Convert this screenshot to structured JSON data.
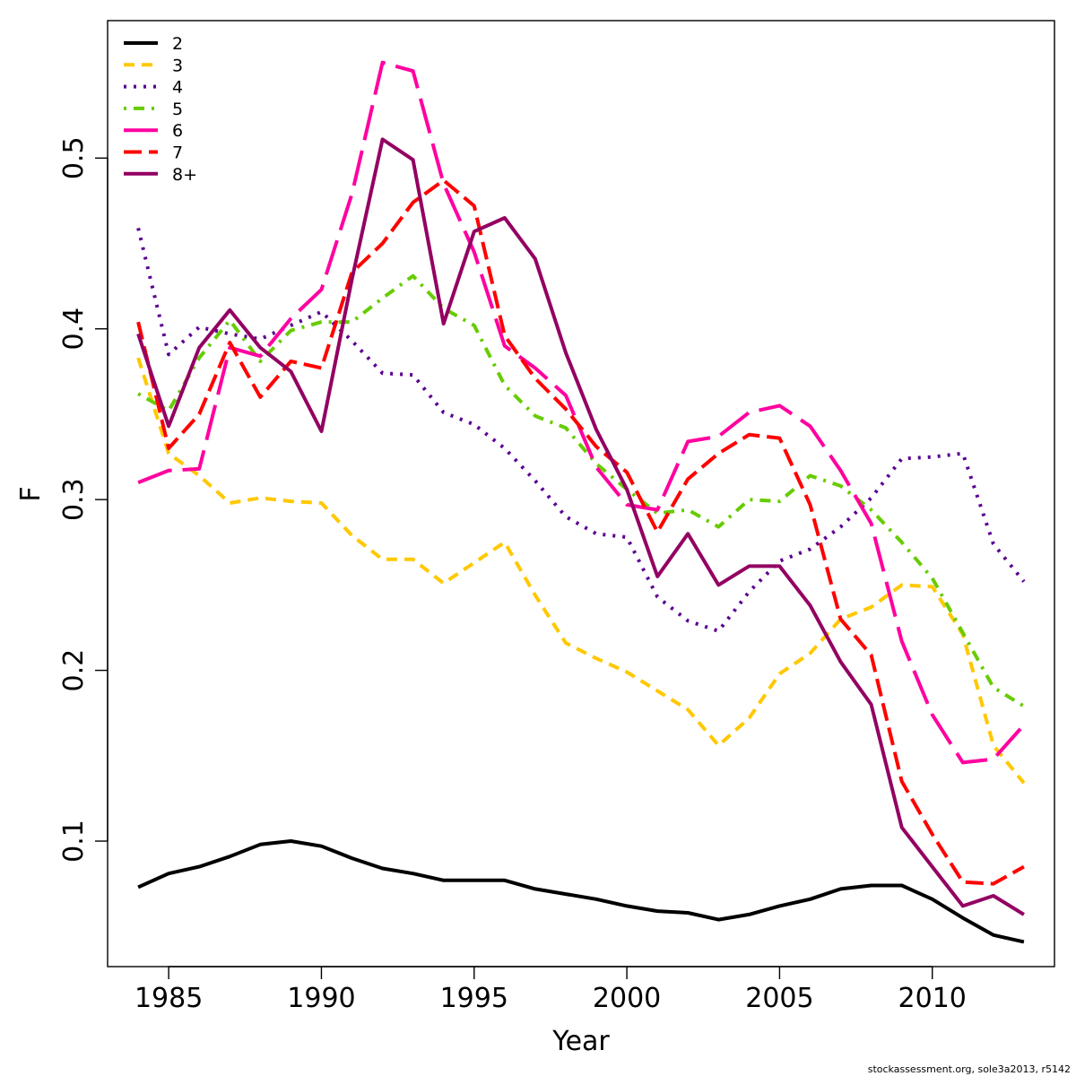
{
  "chart_data": {
    "type": "line",
    "xlabel": "Year",
    "ylabel": "F",
    "xlim": [
      1983.0,
      2014.0
    ],
    "ylim": [
      0.0265,
      0.5805
    ],
    "xticks": [
      1985,
      1990,
      1995,
      2000,
      2005,
      2010
    ],
    "yticks": [
      0.1,
      0.2,
      0.3,
      0.4,
      0.5
    ],
    "ytick_labels": [
      "0.1",
      "0.2",
      "0.3",
      "0.4",
      "0.5"
    ],
    "grid": false,
    "legend_position": "top-left",
    "credit": "stockassessment.org, sole3a2013, r5142",
    "x": [
      1984,
      1985,
      1986,
      1987,
      1988,
      1989,
      1990,
      1991,
      1992,
      1993,
      1994,
      1995,
      1996,
      1997,
      1998,
      1999,
      2000,
      2001,
      2002,
      2003,
      2004,
      2005,
      2006,
      2007,
      2008,
      2009,
      2010,
      2011,
      2012,
      2013
    ],
    "series": [
      {
        "name": "2",
        "color": "#000000",
        "dash": "",
        "values": [
          0.073,
          0.081,
          0.085,
          0.091,
          0.098,
          0.1,
          0.097,
          0.09,
          0.084,
          0.081,
          0.077,
          0.077,
          0.077,
          0.072,
          0.069,
          0.066,
          0.062,
          0.059,
          0.058,
          0.054,
          0.057,
          0.062,
          0.066,
          0.072,
          0.074,
          0.074,
          0.066,
          0.055,
          0.045,
          0.041
        ]
      },
      {
        "name": "3",
        "color": "#FFC800",
        "dash": "12,8",
        "values": [
          0.383,
          0.327,
          0.314,
          0.298,
          0.301,
          0.299,
          0.298,
          0.279,
          0.265,
          0.265,
          0.251,
          0.263,
          0.275,
          0.244,
          0.216,
          0.207,
          0.199,
          0.188,
          0.177,
          0.156,
          0.172,
          0.198,
          0.21,
          0.23,
          0.237,
          0.25,
          0.249,
          0.221,
          0.156,
          0.134
        ]
      },
      {
        "name": "4",
        "color": "#5B0091",
        "dash": "3,8",
        "values": [
          0.459,
          0.385,
          0.401,
          0.397,
          0.394,
          0.402,
          0.41,
          0.393,
          0.374,
          0.373,
          0.351,
          0.344,
          0.33,
          0.311,
          0.29,
          0.28,
          0.278,
          0.243,
          0.229,
          0.223,
          0.246,
          0.264,
          0.271,
          0.284,
          0.301,
          0.324,
          0.325,
          0.327,
          0.274,
          0.252
        ]
      },
      {
        "name": "5",
        "color": "#66CC00",
        "dash": "3,8,12,8",
        "values": [
          0.362,
          0.352,
          0.383,
          0.405,
          0.381,
          0.399,
          0.404,
          0.404,
          0.418,
          0.431,
          0.412,
          0.402,
          0.367,
          0.349,
          0.342,
          0.321,
          0.306,
          0.292,
          0.294,
          0.284,
          0.3,
          0.299,
          0.314,
          0.308,
          0.294,
          0.275,
          0.254,
          0.222,
          0.19,
          0.179
        ]
      },
      {
        "name": "6",
        "color": "#FF00A0",
        "dash": "40,12",
        "values": [
          0.31,
          0.317,
          0.318,
          0.389,
          0.384,
          0.406,
          0.423,
          0.479,
          0.556,
          0.551,
          0.485,
          0.445,
          0.39,
          0.377,
          0.361,
          0.319,
          0.297,
          0.294,
          0.334,
          0.337,
          0.351,
          0.355,
          0.343,
          0.317,
          0.286,
          0.217,
          0.174,
          0.146,
          0.148,
          0.168
        ]
      },
      {
        "name": "7",
        "color": "#FF0000",
        "dash": "20,8",
        "values": [
          0.404,
          0.33,
          0.35,
          0.392,
          0.36,
          0.381,
          0.377,
          0.433,
          0.45,
          0.474,
          0.487,
          0.472,
          0.396,
          0.371,
          0.353,
          0.331,
          0.316,
          0.281,
          0.312,
          0.327,
          0.338,
          0.336,
          0.297,
          0.23,
          0.209,
          0.135,
          0.104,
          0.076,
          0.075,
          0.085
        ]
      },
      {
        "name": "8+",
        "color": "#930062",
        "dash": "",
        "values": [
          0.397,
          0.343,
          0.389,
          0.411,
          0.389,
          0.375,
          0.34,
          0.429,
          0.511,
          0.499,
          0.403,
          0.457,
          0.465,
          0.441,
          0.386,
          0.341,
          0.306,
          0.255,
          0.28,
          0.25,
          0.261,
          0.261,
          0.238,
          0.205,
          0.18,
          0.108,
          0.085,
          0.062,
          0.068,
          0.057
        ]
      }
    ]
  }
}
